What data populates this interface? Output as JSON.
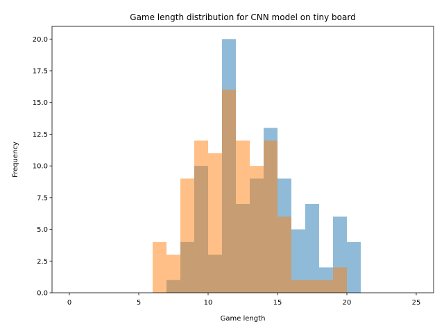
{
  "chart_data": {
    "type": "bar",
    "title": "Game length distribution for CNN model on tiny board",
    "xlabel": "Game length",
    "ylabel": "Frequency",
    "xlim": [
      -1.25,
      26.25
    ],
    "ylim": [
      0,
      21
    ],
    "x_ticks": [
      0,
      5,
      10,
      15,
      20,
      25
    ],
    "y_ticks": [
      0,
      2.5,
      5,
      7.5,
      10,
      12.5,
      15,
      17.5,
      20
    ],
    "x_tick_labels": [
      "0",
      "5",
      "10",
      "15",
      "20",
      "25"
    ],
    "y_tick_labels": [
      "0.0",
      "2.5",
      "5.0",
      "7.5",
      "10.0",
      "12.5",
      "15.0",
      "17.5",
      "20.0"
    ],
    "grid": false,
    "bin_edges": [
      0,
      1,
      2,
      3,
      4,
      5,
      6,
      7,
      8,
      9,
      10,
      11,
      12,
      13,
      14,
      15,
      16,
      17,
      18,
      19,
      20,
      21,
      22,
      23,
      24,
      25
    ],
    "series": [
      {
        "color": "#1f77b4",
        "opacity": 0.5,
        "values": [
          0,
          0,
          0,
          0,
          0,
          0,
          0,
          1,
          4,
          10,
          3,
          20,
          7,
          9,
          13,
          9,
          5,
          7,
          2,
          6,
          4,
          0,
          0,
          0,
          0
        ]
      },
      {
        "color": "#ff7f0e",
        "opacity": 0.5,
        "values": [
          0,
          0,
          0,
          0,
          0,
          0,
          4,
          3,
          9,
          12,
          11,
          16,
          12,
          10,
          12,
          6,
          1,
          1,
          1,
          2,
          0,
          0,
          0,
          0,
          0
        ]
      }
    ]
  }
}
